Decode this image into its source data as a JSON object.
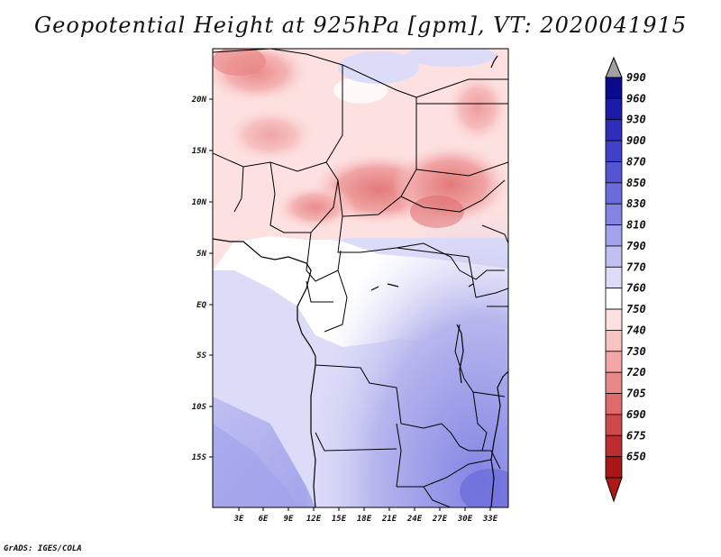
{
  "title": "Geopotential Height at 925hPa [gpm], VT: 2020041915",
  "credit": "GrADS: IGES/COLA",
  "lat_ticks": [
    "20N",
    "15N",
    "10N",
    "5N",
    "EQ",
    "5S",
    "10S",
    "15S"
  ],
  "lon_ticks": [
    "3E",
    "6E",
    "9E",
    "12E",
    "15E",
    "18E",
    "21E",
    "24E",
    "27E",
    "30E",
    "33E"
  ],
  "colorbar": {
    "levels": [
      "990",
      "960",
      "930",
      "900",
      "870",
      "850",
      "830",
      "810",
      "790",
      "770",
      "760",
      "750",
      "740",
      "730",
      "720",
      "705",
      "690",
      "675",
      "650"
    ],
    "colors": [
      "#0a0a8c",
      "#1b1ba8",
      "#2e2eba",
      "#4040c8",
      "#5555d2",
      "#6b6bdc",
      "#8484e4",
      "#a2a2ec",
      "#c0c0f2",
      "#dcdcf8",
      "#ffffff",
      "#fde0e0",
      "#f9c4c4",
      "#f3a6a6",
      "#ea8888",
      "#de6a6a",
      "#ce4a4a",
      "#bc2e2e",
      "#a81616"
    ]
  },
  "chart_data": {
    "type": "heatmap",
    "title": "Geopotential Height at 925hPa [gpm], VT: 2020041915",
    "variable": "Geopotential Height",
    "units": "gpm",
    "level": "925hPa",
    "valid_time": "2020041915",
    "lon_range": [
      "0E",
      "35E"
    ],
    "lat_range": [
      "20S",
      "25N"
    ],
    "contour_levels": [
      990,
      960,
      930,
      900,
      870,
      850,
      830,
      810,
      790,
      770,
      760,
      750,
      740,
      730,
      720,
      705,
      690,
      675,
      650
    ]
  }
}
